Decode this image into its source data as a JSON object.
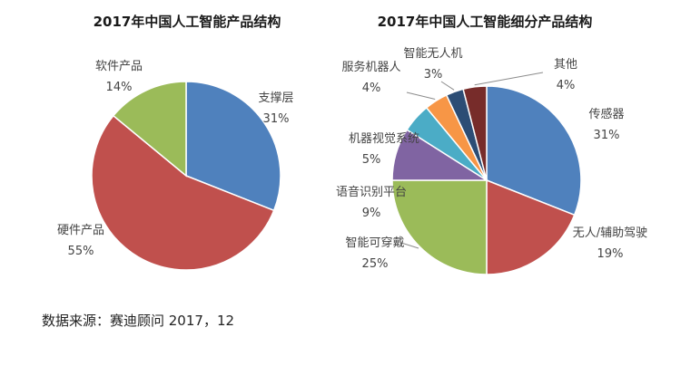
{
  "chart_data": [
    {
      "type": "pie",
      "title": "2017年中国人工智能产品结构",
      "slices": [
        {
          "name": "支撑层",
          "value": 31,
          "label": "31%",
          "color": "#4f81bd"
        },
        {
          "name": "硬件产品",
          "value": 55,
          "label": "55%",
          "color": "#c0504d"
        },
        {
          "name": "软件产品",
          "value": 14,
          "label": "14%",
          "color": "#9bbb59"
        }
      ]
    },
    {
      "type": "pie",
      "title": "2017年中国人工智能细分产品结构",
      "slices": [
        {
          "name": "传感器",
          "value": 31,
          "label": "31%",
          "color": "#4f81bd"
        },
        {
          "name": "无人/辅助驾驶",
          "value": 19,
          "label": "19%",
          "color": "#c0504d"
        },
        {
          "name": "智能可穿戴",
          "value": 25,
          "label": "25%",
          "color": "#9bbb59"
        },
        {
          "name": "语音识别平台",
          "value": 9,
          "label": "9%",
          "color": "#8064a2"
        },
        {
          "name": "机器视觉系统",
          "value": 5,
          "label": "5%",
          "color": "#4bacc6"
        },
        {
          "name": "服务机器人",
          "value": 4,
          "label": "4%",
          "color": "#f79646"
        },
        {
          "name": "智能无人机",
          "value": 3,
          "label": "3%",
          "color": "#2c4d75"
        },
        {
          "name": "其他",
          "value": 4,
          "label": "4%",
          "color": "#772c2a"
        }
      ]
    }
  ],
  "source": "数据来源：赛迪顾问 2017，12"
}
